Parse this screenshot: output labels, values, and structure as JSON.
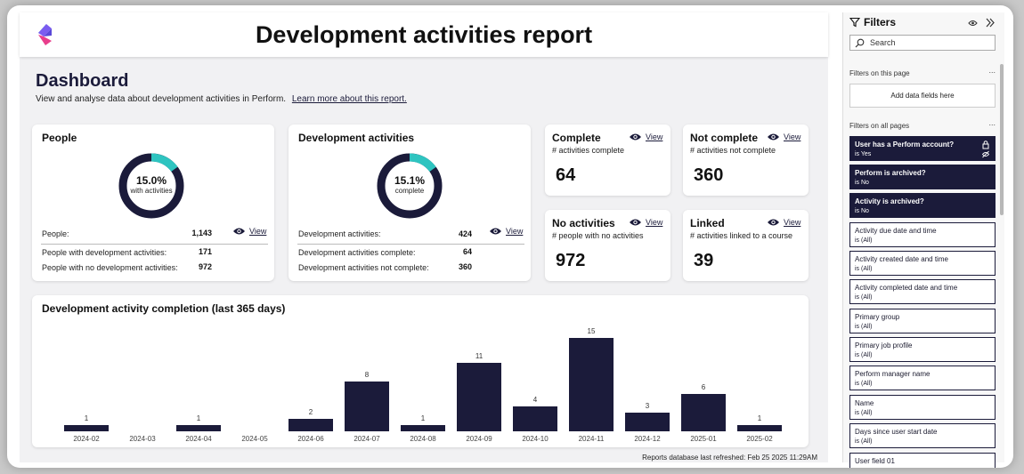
{
  "report": {
    "title": "Development activities report",
    "dashboard_title": "Dashboard",
    "description": "View and analyse data about development activities in Perform.",
    "learn_more": "Learn more about this report.",
    "refresh_text": "Reports database last refreshed: Feb 25 2025 11:29AM"
  },
  "people_card": {
    "title": "People",
    "donut_pct": "15.0%",
    "donut_sub": "with activities",
    "donut_fraction": 0.15,
    "total_label": "People:",
    "total_value": "1,143",
    "view_label": "View",
    "with_label": "People with development activities:",
    "with_value": "171",
    "without_label": "People with no development activities:",
    "without_value": "972"
  },
  "dev_card": {
    "title": "Development activities",
    "donut_pct": "15.1%",
    "donut_sub": "complete",
    "donut_fraction": 0.151,
    "total_label": "Development activities:",
    "total_value": "424",
    "view_label": "View",
    "complete_label": "Development activities complete:",
    "complete_value": "64",
    "not_complete_label": "Development activities not complete:",
    "not_complete_value": "360"
  },
  "kpis": {
    "complete": {
      "title": "Complete",
      "sub": "# activities complete",
      "value": "64",
      "view": "View"
    },
    "not_complete": {
      "title": "Not complete",
      "sub": "# activities not complete",
      "value": "360",
      "view": "View"
    },
    "no_activities": {
      "title": "No activities",
      "sub": "# people with no activities",
      "value": "972",
      "view": "View"
    },
    "linked": {
      "title": "Linked",
      "sub": "# activities linked to a course",
      "value": "39",
      "view": "View"
    }
  },
  "chart_data": {
    "type": "bar",
    "title": "Development activity completion (last 365 days)",
    "categories": [
      "2024-02",
      "2024-03",
      "2024-04",
      "2024-05",
      "2024-06",
      "2024-07",
      "2024-08",
      "2024-09",
      "2024-10",
      "2024-11",
      "2024-12",
      "2025-01",
      "2025-02"
    ],
    "values": [
      1,
      null,
      1,
      null,
      2,
      8,
      1,
      11,
      4,
      15,
      3,
      6,
      1
    ],
    "xlabel": "",
    "ylabel": "",
    "ylim": [
      0,
      15
    ],
    "grid": false,
    "bar_color": "#1b1b3a"
  },
  "filters": {
    "title": "Filters",
    "search_placeholder": "Search",
    "on_page_label": "Filters on this page",
    "add_fields": "Add data fields here",
    "all_pages_label": "Filters on all pages",
    "dots": "...",
    "items": [
      {
        "name": "User has a Perform account?",
        "value": "is Yes"
      },
      {
        "name": "Perform is archived?",
        "value": "is No"
      },
      {
        "name": "Activity is archived?",
        "value": "is No"
      },
      {
        "name": "Activity due date and time",
        "value": "is (All)"
      },
      {
        "name": "Activity created date and time",
        "value": "is (All)"
      },
      {
        "name": "Activity completed date and time",
        "value": "is (All)"
      },
      {
        "name": "Primary group",
        "value": "is (All)"
      },
      {
        "name": "Primary job profile",
        "value": "is (All)"
      },
      {
        "name": "Perform manager name",
        "value": "is (All)"
      },
      {
        "name": "Name",
        "value": "is (All)"
      },
      {
        "name": "Days since user start date",
        "value": "is (All)"
      },
      {
        "name": "User field 01",
        "value": ""
      }
    ]
  },
  "colors": {
    "accent": "#2ec4c0",
    "dark": "#1b1b3a",
    "ring": "#1b1b3a"
  }
}
